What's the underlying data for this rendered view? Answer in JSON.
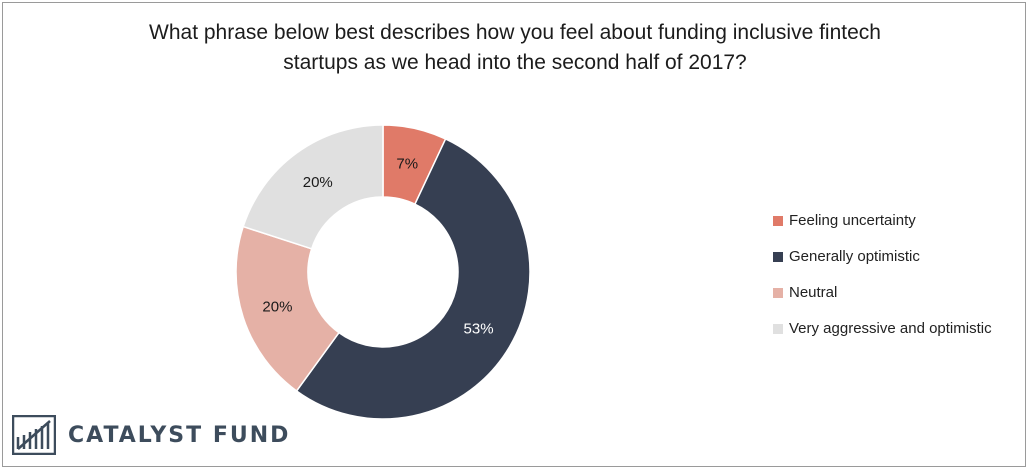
{
  "title_lines": [
    "What phrase below best describes how you feel about funding inclusive fintech",
    "startups as we head into the second half of 2017?"
  ],
  "chart_data": {
    "type": "pie",
    "style": "donut",
    "title": "What phrase below best describes how you feel about funding inclusive fintech startups as we head into the second half of 2017?",
    "categories": [
      "Feeling uncertainty",
      "Generally optimistic",
      "Neutral",
      "Very aggressive and optimistic"
    ],
    "values": [
      7,
      53,
      20,
      20
    ],
    "labels": [
      "7%",
      "53%",
      "20%",
      "20%"
    ],
    "colors": [
      "#e07a68",
      "#363f52",
      "#e5b1a6",
      "#e0e0e0"
    ],
    "label_colors": [
      "#1a1a1a",
      "#ffffff",
      "#1a1a1a",
      "#1a1a1a"
    ],
    "legend_position": "right"
  },
  "logo": {
    "text": "CATALYST FUND",
    "color": "#3d4c5c"
  }
}
